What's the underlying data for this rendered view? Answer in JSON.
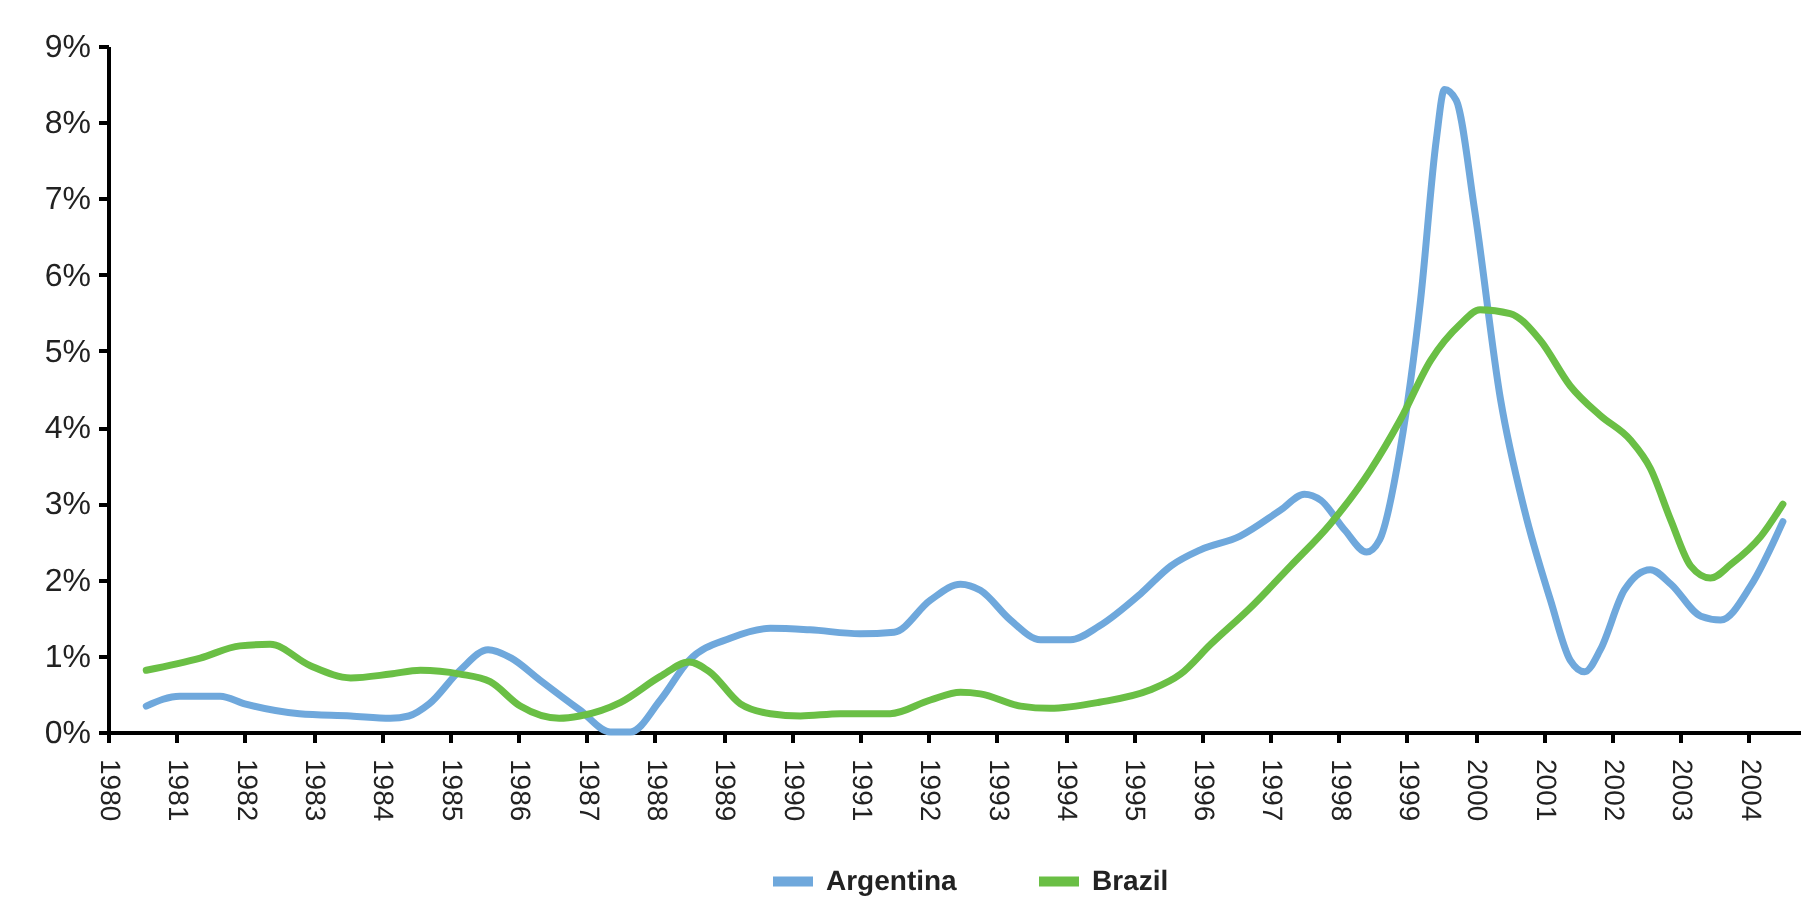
{
  "chart_data": {
    "type": "line",
    "xlim": [
      1980,
      2004.75
    ],
    "xticks": [
      1980,
      1981,
      1982,
      1983,
      1984,
      1985,
      1986,
      1987,
      1988,
      1989,
      1990,
      1991,
      1992,
      1993,
      1994,
      1995,
      1996,
      1997,
      1998,
      1999,
      2000,
      2001,
      2002,
      2003,
      2004
    ],
    "ylim": [
      0,
      9
    ],
    "yticks": [
      {
        "value": 0,
        "label": "0%"
      },
      {
        "value": 1,
        "label": "1%"
      },
      {
        "value": 2,
        "label": "2%"
      },
      {
        "value": 3,
        "label": "3%"
      },
      {
        "value": 4,
        "label": "4%"
      },
      {
        "value": 5,
        "label": "5%"
      },
      {
        "value": 6,
        "label": "6%"
      },
      {
        "value": 7,
        "label": "7%"
      },
      {
        "value": 8,
        "label": "8%"
      },
      {
        "value": 9,
        "label": "9%"
      }
    ],
    "grid": false,
    "legend": "bottom",
    "line_style": "solid",
    "series": [
      {
        "name": "Argentina",
        "color": "#6fa8dc",
        "x": [
          1980.56,
          1981.05,
          1981.64,
          1982.0,
          1982.8,
          1983.55,
          1984.13,
          1984.4,
          1984.7,
          1985.15,
          1985.56,
          1985.9,
          1986.32,
          1986.9,
          1987.35,
          1987.64,
          1988.08,
          1988.5,
          1989.1,
          1989.69,
          1990.27,
          1991.0,
          1991.5,
          1992.03,
          1992.47,
          1992.76,
          1993.2,
          1993.64,
          1994.08,
          1994.5,
          1995.1,
          1995.55,
          1995.98,
          1996.56,
          1997.15,
          1997.5,
          1997.74,
          1998.09,
          1998.41,
          1998.6,
          1998.9,
          1999.2,
          1999.43,
          1999.55,
          1999.72,
          1999.99,
          2000.37,
          2000.72,
          2001.1,
          2001.39,
          2001.6,
          2001.83,
          2002.18,
          2002.56,
          2002.86,
          2003.3,
          2003.59,
          2004.03,
          2004.5
        ],
        "values": [
          0.34,
          0.47,
          0.47,
          0.37,
          0.24,
          0.21,
          0.18,
          0.21,
          0.37,
          0.81,
          1.08,
          0.97,
          0.68,
          0.29,
          0.0,
          0.0,
          0.42,
          0.94,
          1.23,
          1.36,
          1.34,
          1.29,
          1.31,
          1.73,
          1.94,
          1.86,
          1.47,
          1.21,
          1.21,
          1.39,
          1.81,
          2.18,
          2.39,
          2.57,
          2.91,
          3.12,
          3.04,
          2.65,
          2.36,
          2.52,
          3.7,
          5.67,
          7.77,
          8.43,
          8.29,
          6.85,
          4.36,
          2.91,
          1.73,
          0.94,
          0.79,
          1.08,
          1.86,
          2.13,
          1.94,
          1.52,
          1.47,
          1.92,
          2.76
        ]
      },
      {
        "name": "Brazil",
        "color": "#6abf45",
        "x": [
          1980.56,
          1981.35,
          1981.93,
          1982.37,
          1982.96,
          1983.55,
          1984.13,
          1984.57,
          1985.15,
          1985.59,
          1986.03,
          1986.6,
          1986.9,
          1987.5,
          1988.08,
          1988.5,
          1988.8,
          1989.25,
          1989.69,
          1990.13,
          1990.71,
          1991.44,
          1992.03,
          1992.47,
          1992.76,
          1993.35,
          1993.78,
          1994.5,
          1995.24,
          1995.69,
          1996.13,
          1996.71,
          1997.3,
          1997.88,
          1998.47,
          1998.9,
          1999.35,
          1999.78,
          2000.07,
          2000.51,
          2000.95,
          2001.39,
          2001.83,
          2002.27,
          2002.56,
          2002.86,
          2003.15,
          2003.44,
          2003.74,
          2004.18,
          2004.5
        ],
        "values": [
          0.81,
          0.97,
          1.13,
          1.15,
          0.87,
          0.71,
          0.76,
          0.81,
          0.76,
          0.66,
          0.34,
          0.18,
          0.21,
          0.39,
          0.73,
          0.92,
          0.79,
          0.37,
          0.24,
          0.21,
          0.24,
          0.24,
          0.42,
          0.52,
          0.5,
          0.34,
          0.31,
          0.39,
          0.55,
          0.76,
          1.15,
          1.63,
          2.18,
          2.73,
          3.44,
          4.09,
          4.88,
          5.35,
          5.54,
          5.49,
          5.14,
          4.54,
          4.15,
          3.83,
          3.46,
          2.78,
          2.18,
          2.02,
          2.2,
          2.57,
          2.99
        ]
      }
    ]
  }
}
